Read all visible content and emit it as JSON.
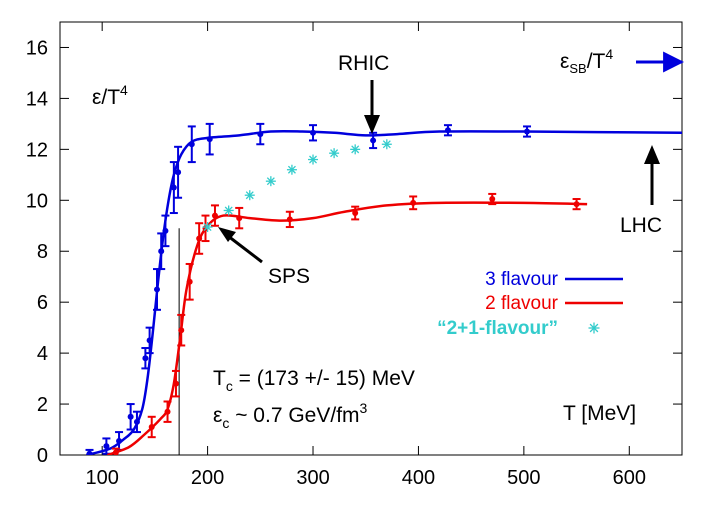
{
  "chart_data": {
    "type": "line",
    "title": "",
    "xlabel": "T [MeV]",
    "ylabel_main": "ε/T",
    "ylabel_sup": "4",
    "xlim": [
      60,
      650
    ],
    "ylim": [
      0,
      17
    ],
    "xticks": [
      100,
      200,
      300,
      400,
      500,
      600
    ],
    "yticks": [
      0,
      2,
      4,
      6,
      8,
      10,
      12,
      14,
      16
    ],
    "grid": false,
    "legend_position": "right",
    "series": [
      {
        "name": "3 flavour",
        "color": "#0000dd",
        "curve": [
          [
            85,
            0.0
          ],
          [
            100,
            0.15
          ],
          [
            110,
            0.3
          ],
          [
            120,
            0.6
          ],
          [
            130,
            1.0
          ],
          [
            138,
            1.8
          ],
          [
            143,
            3.0
          ],
          [
            148,
            4.8
          ],
          [
            153,
            6.8
          ],
          [
            158,
            8.6
          ],
          [
            163,
            10.0
          ],
          [
            168,
            11.0
          ],
          [
            175,
            11.8
          ],
          [
            185,
            12.3
          ],
          [
            200,
            12.45
          ],
          [
            230,
            12.55
          ],
          [
            260,
            12.7
          ],
          [
            290,
            12.7
          ],
          [
            320,
            12.65
          ],
          [
            350,
            12.55
          ],
          [
            380,
            12.6
          ],
          [
            420,
            12.7
          ],
          [
            500,
            12.7
          ],
          [
            650,
            12.65
          ]
        ],
        "points": [
          {
            "x": 88,
            "y": 0.05,
            "err": 0.15
          },
          {
            "x": 104,
            "y": 0.35,
            "err": 0.3
          },
          {
            "x": 116,
            "y": 0.55,
            "err": 0.35
          },
          {
            "x": 127,
            "y": 1.5,
            "err": 0.5
          },
          {
            "x": 133,
            "y": 1.3,
            "err": 0.4
          },
          {
            "x": 141,
            "y": 3.8,
            "err": 0.4
          },
          {
            "x": 145,
            "y": 4.5,
            "err": 0.5
          },
          {
            "x": 152,
            "y": 6.5,
            "err": 0.8
          },
          {
            "x": 156,
            "y": 8.0,
            "err": 0.7
          },
          {
            "x": 160,
            "y": 8.8,
            "err": 0.6
          },
          {
            "x": 168,
            "y": 10.5,
            "err": 1.0
          },
          {
            "x": 172,
            "y": 11.1,
            "err": 1.0
          },
          {
            "x": 185,
            "y": 12.2,
            "err": 0.7
          },
          {
            "x": 202,
            "y": 12.4,
            "err": 0.6
          },
          {
            "x": 250,
            "y": 12.6,
            "err": 0.4
          },
          {
            "x": 300,
            "y": 12.65,
            "err": 0.3
          },
          {
            "x": 357,
            "y": 12.35,
            "err": 0.3
          },
          {
            "x": 428,
            "y": 12.75,
            "err": 0.2
          },
          {
            "x": 503,
            "y": 12.7,
            "err": 0.2
          }
        ]
      },
      {
        "name": "2 flavour",
        "color": "#ee0000",
        "curve": [
          [
            105,
            0.0
          ],
          [
            125,
            0.3
          ],
          [
            140,
            0.8
          ],
          [
            155,
            1.4
          ],
          [
            162,
            1.8
          ],
          [
            168,
            2.8
          ],
          [
            174,
            4.6
          ],
          [
            180,
            6.5
          ],
          [
            190,
            8.2
          ],
          [
            200,
            9.0
          ],
          [
            215,
            9.4
          ],
          [
            240,
            9.3
          ],
          [
            270,
            9.2
          ],
          [
            300,
            9.3
          ],
          [
            330,
            9.55
          ],
          [
            370,
            9.8
          ],
          [
            420,
            9.9
          ],
          [
            500,
            9.9
          ],
          [
            560,
            9.85
          ]
        ],
        "points": [
          {
            "x": 113,
            "y": 0.1,
            "err": 0.15
          },
          {
            "x": 147,
            "y": 1.1,
            "err": 0.4
          },
          {
            "x": 162,
            "y": 1.7,
            "err": 0.4
          },
          {
            "x": 170,
            "y": 2.8,
            "err": 0.5
          },
          {
            "x": 175,
            "y": 4.9,
            "err": 0.6
          },
          {
            "x": 183,
            "y": 6.8,
            "err": 0.7
          },
          {
            "x": 192,
            "y": 8.5,
            "err": 0.6
          },
          {
            "x": 198,
            "y": 8.9,
            "err": 0.5
          },
          {
            "x": 207,
            "y": 9.4,
            "err": 0.4
          },
          {
            "x": 230,
            "y": 9.3,
            "err": 0.4
          },
          {
            "x": 278,
            "y": 9.25,
            "err": 0.3
          },
          {
            "x": 340,
            "y": 9.5,
            "err": 0.25
          },
          {
            "x": 395,
            "y": 9.9,
            "err": 0.25
          },
          {
            "x": 470,
            "y": 10.05,
            "err": 0.2
          },
          {
            "x": 550,
            "y": 9.85,
            "err": 0.2
          }
        ]
      },
      {
        "name": "“2+1-flavour”",
        "color": "#33cccc",
        "points": [
          {
            "x": 200,
            "y": 8.95
          },
          {
            "x": 220,
            "y": 9.6
          },
          {
            "x": 240,
            "y": 10.2
          },
          {
            "x": 260,
            "y": 10.75
          },
          {
            "x": 280,
            "y": 11.2
          },
          {
            "x": 300,
            "y": 11.6
          },
          {
            "x": 320,
            "y": 11.85
          },
          {
            "x": 340,
            "y": 12.0
          },
          {
            "x": 370,
            "y": 12.2
          }
        ]
      }
    ],
    "tc_line_x": 173,
    "annotations": {
      "rhic": {
        "text": "RHIC",
        "x": 350
      },
      "lhc": {
        "text": "LHC",
        "x": 622
      },
      "sps": {
        "text": "SPS",
        "x": 200,
        "y": 9.0
      },
      "esb_main": "ε",
      "esb_sub": "SB",
      "esb_tail": "/T",
      "esb_sup": "4",
      "tc_a": "T",
      "tc_sub": "c",
      "tc_b": " = (173 +/- 15) MeV",
      "ec_a": "ε",
      "ec_sub": "c",
      "ec_b": " ~ 0.7 GeV/fm",
      "ec_sup": "3"
    }
  }
}
